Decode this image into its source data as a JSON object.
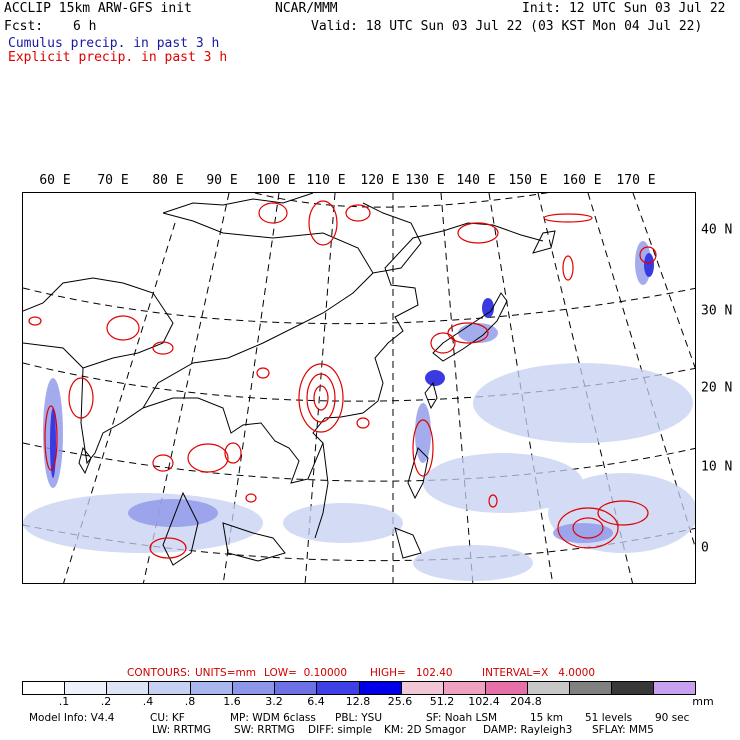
{
  "header": {
    "model_title": "ACCLIP 15km ARW-GFS init",
    "center": "NCAR/MMM",
    "init": "Init: 12 UTC Sun 03 Jul 22",
    "fcst_label": "Fcst:",
    "fcst_value": "6 h",
    "valid": "Valid: 18 UTC Sun 03 Jul 22 (03 KST Mon 04 Jul 22)",
    "cumulus_legend": "Cumulus precip. in past 3 h",
    "explicit_legend": "Explicit precip. in past 3 h"
  },
  "map": {
    "lon_labels": [
      "60 E",
      "70 E",
      "80 E",
      "90 E",
      "100 E",
      "110 E",
      "120 E",
      "130 E",
      "140 E",
      "150 E",
      "160 E",
      "170 E"
    ],
    "lat_labels": [
      "40 N",
      "30 N",
      "20 N",
      "10 N",
      "0"
    ]
  },
  "contours": {
    "label": "CONTOURS:",
    "units": "UNITS=mm",
    "low": "LOW=  0.10000",
    "high": "HIGH=   102.40",
    "interval": "INTERVAL=X   4.0000"
  },
  "colorbar": {
    "colors": [
      "#ffffff",
      "#eef2fb",
      "#dde4f6",
      "#c6d0f2",
      "#aab6ee",
      "#8d97ea",
      "#6c72e6",
      "#4040e8",
      "#0000e8",
      "#f2c8d8",
      "#f0a0c0",
      "#e870a8",
      "#c8c8c8",
      "#808080",
      "#383838",
      "#c8a0f0"
    ],
    "tick_labels": [
      ".1",
      ".2",
      ".4",
      ".8",
      "1.6",
      "3.2",
      "6.4",
      "12.8",
      "25.6",
      "51.2",
      "102.4",
      "204.8"
    ],
    "units": "mm"
  },
  "footer": {
    "line1": [
      "Model Info: V4.4",
      "CU: KF",
      "MP: WDM 6class",
      "PBL: YSU",
      "SF: Noah LSM",
      "15 km",
      "51 levels",
      "90 sec"
    ],
    "line2": [
      "LW: RRTMG",
      "SW: RRTMG",
      "DIFF: simple",
      "KM: 2D Smagor",
      "DAMP: Rayleigh3",
      "SFLAY: MM5"
    ]
  },
  "colors": {
    "cumulus": "#1a1aa0",
    "explicit": "#e00000",
    "contour_text": "#d00000"
  }
}
